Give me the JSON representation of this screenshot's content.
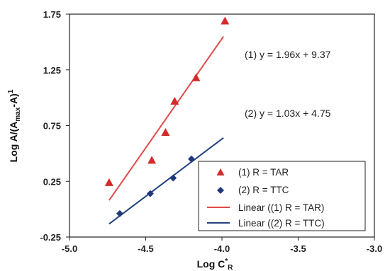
{
  "chart_data": {
    "type": "scatter",
    "xlabel": "Log C",
    "xlabel_sup": "*",
    "xlabel_sub": "R",
    "ylabel": "Log A/(A",
    "ylabel_sub": "max",
    "ylabel_end": "-A)",
    "ylabel_sup": "1",
    "xlim": [
      -5.0,
      -3.0
    ],
    "ylim": [
      -0.25,
      1.75
    ],
    "xticks": [
      -5.0,
      -4.5,
      -4.0,
      -3.5,
      -3.0
    ],
    "xtick_labels": [
      "-5.0",
      "-4.5",
      "-4.0",
      "-3.5",
      "-3.0"
    ],
    "yticks": [
      -0.25,
      0.25,
      0.75,
      1.25,
      1.75
    ],
    "ytick_labels": [
      "-0.25",
      "0.25",
      "0.75",
      "1.25",
      "1.75"
    ],
    "grid": false,
    "legend_position": "bottom-right",
    "series": [
      {
        "name": "(1) R = TAR",
        "marker": "triangle",
        "color": "#d42a2a",
        "x": [
          -4.74,
          -4.46,
          -4.37,
          -4.31,
          -4.17,
          -3.98
        ],
        "y": [
          0.24,
          0.44,
          0.69,
          0.97,
          1.18,
          1.69
        ]
      },
      {
        "name": "(2) R = TTC",
        "marker": "diamond",
        "color": "#1f3a7a",
        "x": [
          -4.67,
          -4.47,
          -4.32,
          -4.2
        ],
        "y": [
          -0.04,
          0.14,
          0.28,
          0.45
        ]
      }
    ],
    "fits": [
      {
        "name": "Linear ((1) R = TAR)",
        "color": "#e04a4a",
        "slope": 1.96,
        "intercept": 9.37,
        "x_range": [
          -4.74,
          -3.99
        ],
        "equation": "(1)  y = 1.96x + 9.37"
      },
      {
        "name": "Linear ((2) R = TTC)",
        "color": "#23407f",
        "slope": 1.03,
        "intercept": 4.75,
        "x_range": [
          -4.74,
          -3.99
        ],
        "equation": "(2)  y = 1.03x + 4.75"
      }
    ]
  }
}
